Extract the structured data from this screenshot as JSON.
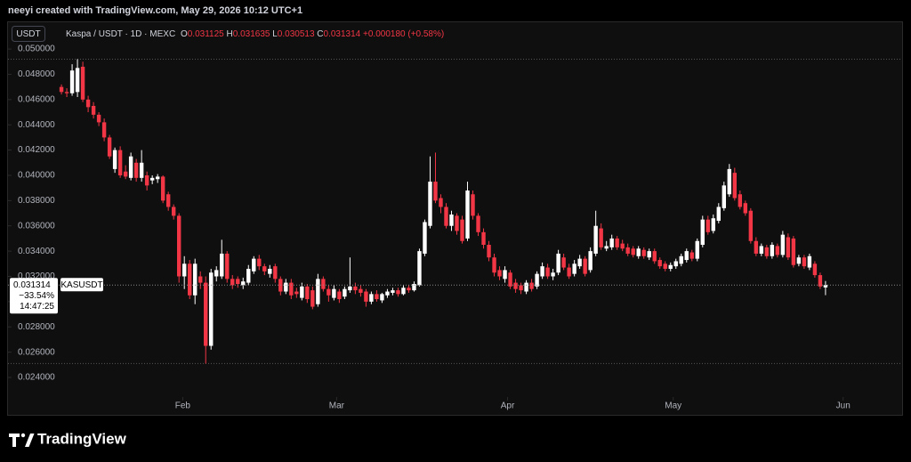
{
  "header": {
    "credit": "neeyi created with TradingView.com, May 29, 2026 10:12 UTC+1",
    "currency_button": "USDT"
  },
  "chart_data": {
    "type": "candlestick",
    "symbol": "Kaspa / USDT · 1D · MEXC",
    "ohlc_letters": [
      "O",
      "H",
      "L",
      "C"
    ],
    "change": "+0.000180 (+0.58%)",
    "price_tag": {
      "symbol": "KASUSDT",
      "change_pct": "−33.54%",
      "countdown": "14:47:25"
    },
    "up_color": "#ffffff",
    "down_color": "#f23645",
    "xlim": [
      -10,
      157
    ],
    "xticks": [
      {
        "value": 22.7,
        "label": "Feb"
      },
      {
        "value": 51.5,
        "label": "Mar"
      },
      {
        "value": 83.5,
        "label": "Apr"
      },
      {
        "value": 114.5,
        "label": "May"
      },
      {
        "value": 146.3,
        "label": "Jun"
      }
    ],
    "ylim": [
      0.02252,
      0.0505
    ],
    "yticks": [
      {
        "value": 0.05,
        "label": "0.050000"
      },
      {
        "value": 0.048,
        "label": "0.048000"
      },
      {
        "value": 0.046,
        "label": "0.046000"
      },
      {
        "value": 0.044,
        "label": "0.044000"
      },
      {
        "value": 0.042,
        "label": "0.042000"
      },
      {
        "value": 0.04,
        "label": "0.040000"
      },
      {
        "value": 0.038,
        "label": "0.038000"
      },
      {
        "value": 0.036,
        "label": "0.036000"
      },
      {
        "value": 0.034,
        "label": "0.034000"
      },
      {
        "value": 0.032,
        "label": "0.032000"
      },
      {
        "value": 0.03,
        "label": "0.030000"
      },
      {
        "value": 0.028,
        "label": "0.028000"
      },
      {
        "value": 0.026,
        "label": "0.026000"
      },
      {
        "value": 0.024,
        "label": "0.024000"
      }
    ],
    "open": [
      0.047,
      0.0466,
      0.0465,
      0.0466,
      0.0486,
      0.046,
      0.0455,
      0.0448,
      0.0442,
      0.043,
      0.0405,
      0.042,
      0.0403,
      0.0398,
      0.041,
      0.0398,
      0.04,
      0.0396,
      0.0397,
      0.0399,
      0.0385,
      0.0375,
      0.0368,
      0.032,
      0.033,
      0.0305,
      0.032,
      0.0315,
      0.0265,
      0.032,
      0.032,
      0.0338,
      0.0318,
      0.0318,
      0.0313,
      0.0315,
      0.0324,
      0.0334,
      0.0328,
      0.0322,
      0.0328,
      0.0318,
      0.0308,
      0.0315,
      0.0308,
      0.0303,
      0.0312,
      0.0309,
      0.0298,
      0.0318,
      0.031,
      0.0303,
      0.0308,
      0.0304,
      0.0309,
      0.0312,
      0.031,
      0.0308,
      0.03,
      0.0306,
      0.0301,
      0.0305,
      0.0307,
      0.0309,
      0.0306,
      0.0311,
      0.0309,
      0.0313,
      0.0338,
      0.036,
      0.0395,
      0.0382,
      0.0375,
      0.036,
      0.0368,
      0.0365,
      0.035,
      0.0385,
      0.0368,
      0.0355,
      0.0345,
      0.0335,
      0.0325,
      0.0318,
      0.0323,
      0.0315,
      0.0313,
      0.0308,
      0.0315,
      0.0312,
      0.032,
      0.0327,
      0.032,
      0.0323,
      0.0335,
      0.0327,
      0.0322,
      0.0328,
      0.0334,
      0.0325,
      0.0338,
      0.0358,
      0.0342,
      0.0343,
      0.035,
      0.0346,
      0.0343,
      0.0342,
      0.0336,
      0.0341,
      0.0335,
      0.034,
      0.0333,
      0.033,
      0.0326,
      0.0328,
      0.033,
      0.0333,
      0.0339,
      0.0334,
      0.0345,
      0.0365,
      0.0356,
      0.0364,
      0.0374,
      0.0385,
      0.0402,
      0.0385,
      0.0378,
      0.0372,
      0.0348,
      0.0338,
      0.0343,
      0.0336,
      0.0344,
      0.0337,
      0.0351,
      0.035,
      0.033,
      0.0335,
      0.0327,
      0.033,
      0.0321,
      0.031125
    ],
    "high": [
      0.0472,
      0.0469,
      0.0488,
      0.0492,
      0.049,
      0.0463,
      0.0458,
      0.045,
      0.0445,
      0.0432,
      0.0422,
      0.0423,
      0.0408,
      0.0418,
      0.0413,
      0.042,
      0.0403,
      0.04,
      0.0401,
      0.04,
      0.0387,
      0.0377,
      0.037,
      0.0336,
      0.0333,
      0.0334,
      0.0324,
      0.032,
      0.0326,
      0.0328,
      0.0349,
      0.034,
      0.0321,
      0.032,
      0.0319,
      0.0329,
      0.0336,
      0.0337,
      0.033,
      0.0329,
      0.033,
      0.032,
      0.0318,
      0.0318,
      0.0311,
      0.0315,
      0.0314,
      0.0312,
      0.0322,
      0.032,
      0.0313,
      0.0313,
      0.031,
      0.0312,
      0.0335,
      0.0315,
      0.0313,
      0.031,
      0.0308,
      0.0309,
      0.0307,
      0.031,
      0.0311,
      0.0311,
      0.0313,
      0.0313,
      0.0316,
      0.0342,
      0.0365,
      0.0415,
      0.0418,
      0.0385,
      0.0378,
      0.0372,
      0.037,
      0.0368,
      0.0395,
      0.0388,
      0.037,
      0.0358,
      0.0348,
      0.0338,
      0.0328,
      0.0328,
      0.0325,
      0.0318,
      0.0315,
      0.0317,
      0.0318,
      0.0324,
      0.0331,
      0.033,
      0.0326,
      0.0341,
      0.0338,
      0.033,
      0.0333,
      0.0337,
      0.0336,
      0.0343,
      0.0372,
      0.0362,
      0.0348,
      0.0353,
      0.0352,
      0.0349,
      0.0346,
      0.0344,
      0.0344,
      0.0343,
      0.0342,
      0.0342,
      0.0335,
      0.0332,
      0.0331,
      0.0334,
      0.0338,
      0.0342,
      0.0341,
      0.035,
      0.0368,
      0.0368,
      0.0369,
      0.0378,
      0.0395,
      0.0409,
      0.0406,
      0.0388,
      0.038,
      0.0374,
      0.0351,
      0.0346,
      0.0345,
      0.0347,
      0.0346,
      0.0356,
      0.0354,
      0.0352,
      0.0337,
      0.0337,
      0.0338,
      0.0332,
      0.0323,
      0.031635
    ],
    "low": [
      0.0464,
      0.0462,
      0.0463,
      0.0462,
      0.0458,
      0.045,
      0.0445,
      0.0439,
      0.0427,
      0.0413,
      0.0402,
      0.0398,
      0.0397,
      0.0396,
      0.0395,
      0.0395,
      0.0388,
      0.0393,
      0.0394,
      0.0378,
      0.0372,
      0.0365,
      0.0315,
      0.031,
      0.0302,
      0.0298,
      0.031,
      0.0251,
      0.0262,
      0.0316,
      0.0318,
      0.0315,
      0.031,
      0.0311,
      0.031,
      0.0313,
      0.0322,
      0.0325,
      0.0321,
      0.0319,
      0.0315,
      0.0305,
      0.0306,
      0.0302,
      0.0303,
      0.0301,
      0.0299,
      0.0294,
      0.0296,
      0.0308,
      0.03,
      0.0301,
      0.0299,
      0.0302,
      0.0307,
      0.0306,
      0.0304,
      0.0296,
      0.0298,
      0.03,
      0.0299,
      0.0303,
      0.0305,
      0.0304,
      0.0305,
      0.0307,
      0.0308,
      0.0312,
      0.0336,
      0.0358,
      0.0378,
      0.037,
      0.0358,
      0.0356,
      0.0353,
      0.0346,
      0.0348,
      0.0365,
      0.0352,
      0.0342,
      0.0332,
      0.032,
      0.0317,
      0.0315,
      0.031,
      0.0307,
      0.0306,
      0.0306,
      0.0308,
      0.031,
      0.0318,
      0.0318,
      0.0317,
      0.0321,
      0.0325,
      0.0318,
      0.032,
      0.0326,
      0.032,
      0.0323,
      0.0336,
      0.0341,
      0.034,
      0.0341,
      0.0341,
      0.034,
      0.0336,
      0.0335,
      0.0334,
      0.0334,
      0.0333,
      0.033,
      0.0326,
      0.0324,
      0.0324,
      0.0326,
      0.0328,
      0.0331,
      0.0332,
      0.0332,
      0.0343,
      0.0353,
      0.0354,
      0.0362,
      0.0372,
      0.0383,
      0.038,
      0.0373,
      0.0368,
      0.0346,
      0.0336,
      0.0336,
      0.0334,
      0.0334,
      0.0335,
      0.0335,
      0.0333,
      0.0327,
      0.0328,
      0.0326,
      0.0325,
      0.0319,
      0.031,
      0.030513
    ],
    "close": [
      0.0466,
      0.0465,
      0.0483,
      0.0485,
      0.046,
      0.0454,
      0.0448,
      0.0442,
      0.043,
      0.0415,
      0.042,
      0.04,
      0.0399,
      0.0415,
      0.0398,
      0.041,
      0.0392,
      0.0398,
      0.0399,
      0.038,
      0.0375,
      0.0368,
      0.032,
      0.033,
      0.0305,
      0.033,
      0.0315,
      0.0265,
      0.0323,
      0.0325,
      0.0338,
      0.0318,
      0.0313,
      0.0314,
      0.0316,
      0.0326,
      0.0334,
      0.0328,
      0.0324,
      0.0326,
      0.0318,
      0.0308,
      0.0315,
      0.0305,
      0.0306,
      0.0312,
      0.0302,
      0.0296,
      0.0318,
      0.031,
      0.0305,
      0.031,
      0.0302,
      0.031,
      0.0312,
      0.0309,
      0.0307,
      0.03,
      0.0306,
      0.0302,
      0.0306,
      0.0308,
      0.0309,
      0.0306,
      0.0311,
      0.0309,
      0.0314,
      0.034,
      0.0363,
      0.0395,
      0.038,
      0.0375,
      0.036,
      0.0369,
      0.0356,
      0.0348,
      0.0388,
      0.0368,
      0.0355,
      0.0345,
      0.0335,
      0.0323,
      0.032,
      0.0325,
      0.0312,
      0.031,
      0.0309,
      0.0315,
      0.031,
      0.0322,
      0.0328,
      0.032,
      0.0323,
      0.0338,
      0.0327,
      0.032,
      0.033,
      0.0334,
      0.0322,
      0.034,
      0.036,
      0.0343,
      0.0344,
      0.035,
      0.0343,
      0.0342,
      0.0338,
      0.0337,
      0.0342,
      0.0336,
      0.034,
      0.0332,
      0.0328,
      0.0326,
      0.0329,
      0.0332,
      0.0336,
      0.034,
      0.0334,
      0.0348,
      0.0365,
      0.0355,
      0.0366,
      0.0375,
      0.0392,
      0.0405,
      0.0382,
      0.0375,
      0.037,
      0.0348,
      0.0338,
      0.0344,
      0.0336,
      0.0345,
      0.0337,
      0.0353,
      0.0335,
      0.0329,
      0.0335,
      0.0328,
      0.0336,
      0.0321,
      0.0312,
      0.031314
    ]
  },
  "footer": {
    "brand": "TradingView"
  }
}
